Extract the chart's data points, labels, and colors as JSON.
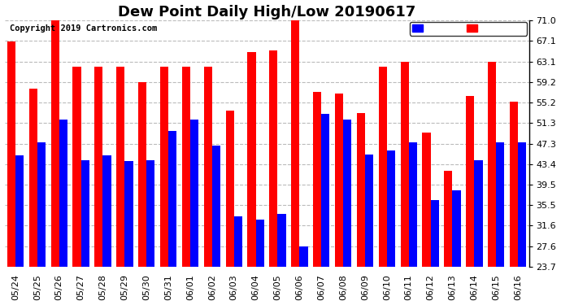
{
  "title": "Dew Point Daily High/Low 20190617",
  "copyright": "Copyright 2019 Cartronics.com",
  "dates": [
    "05/24",
    "05/25",
    "05/26",
    "05/27",
    "05/28",
    "05/29",
    "05/30",
    "05/31",
    "06/01",
    "06/02",
    "06/03",
    "06/04",
    "06/05",
    "06/06",
    "06/07",
    "06/08",
    "06/09",
    "06/10",
    "06/11",
    "06/12",
    "06/13",
    "06/14",
    "06/15",
    "06/16"
  ],
  "high": [
    66.9,
    57.9,
    72.1,
    62.1,
    62.1,
    62.1,
    59.2,
    62.1,
    62.1,
    62.1,
    53.6,
    64.9,
    65.3,
    71.0,
    57.2,
    57.0,
    53.2,
    62.1,
    63.1,
    49.5,
    42.1,
    56.5,
    63.1,
    55.4
  ],
  "low": [
    45.0,
    47.5,
    52.0,
    44.1,
    45.0,
    43.9,
    44.1,
    49.8,
    52.0,
    46.9,
    33.4,
    32.8,
    33.8,
    27.6,
    53.1,
    52.0,
    45.3,
    46.0,
    47.5,
    36.5,
    38.3,
    44.1,
    47.5,
    47.5
  ],
  "yticks": [
    23.7,
    27.6,
    31.6,
    35.5,
    39.5,
    43.4,
    47.3,
    51.3,
    55.2,
    59.2,
    63.1,
    67.1,
    71.0
  ],
  "ymin": 23.7,
  "ymax": 71.0,
  "bar_width": 0.38,
  "high_color": "#FF0000",
  "low_color": "#0000FF",
  "bg_color": "#FFFFFF",
  "grid_color": "#BBBBBB",
  "title_fontsize": 13,
  "tick_fontsize": 8,
  "copyright_fontsize": 7.5
}
